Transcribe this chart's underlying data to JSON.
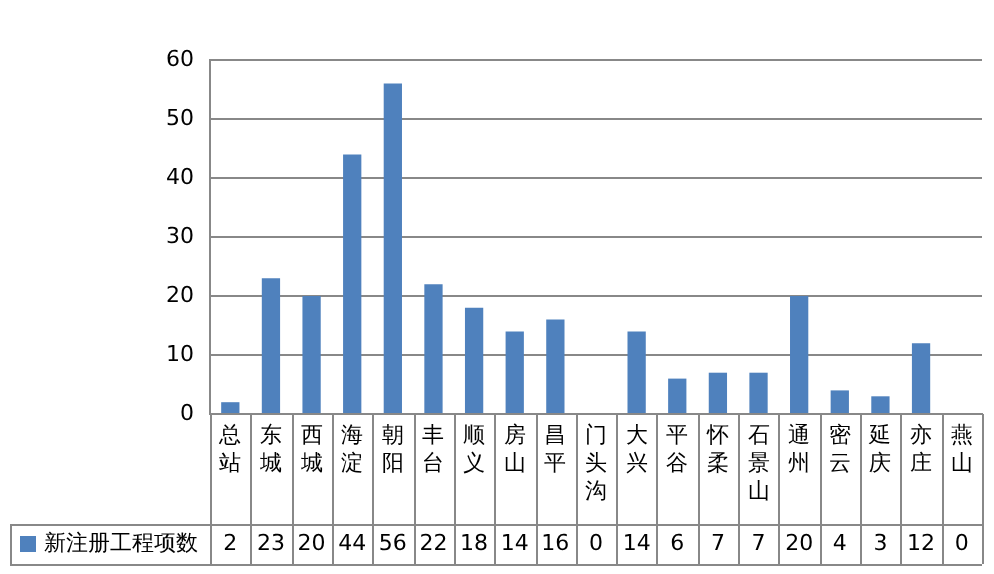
{
  "chart_data": {
    "type": "bar",
    "categories": [
      "总站",
      "东城",
      "西城",
      "海淀",
      "朝阳",
      "丰台",
      "顺义",
      "房山",
      "昌平",
      "门头沟",
      "大兴",
      "平谷",
      "怀柔",
      "石景山",
      "通州",
      "密云",
      "延庆",
      "亦庄",
      "燕山"
    ],
    "series": [
      {
        "name": "新注册工程项数",
        "color": "#4f81bd",
        "values": [
          2,
          23,
          20,
          44,
          56,
          22,
          18,
          14,
          16,
          0,
          14,
          6,
          7,
          7,
          20,
          4,
          3,
          12,
          0
        ]
      }
    ],
    "ylim": [
      0,
      60
    ],
    "yticks": [
      0,
      10,
      20,
      30,
      40,
      50,
      60
    ],
    "grid": "y",
    "legend": "bottom",
    "data_labels": true
  }
}
